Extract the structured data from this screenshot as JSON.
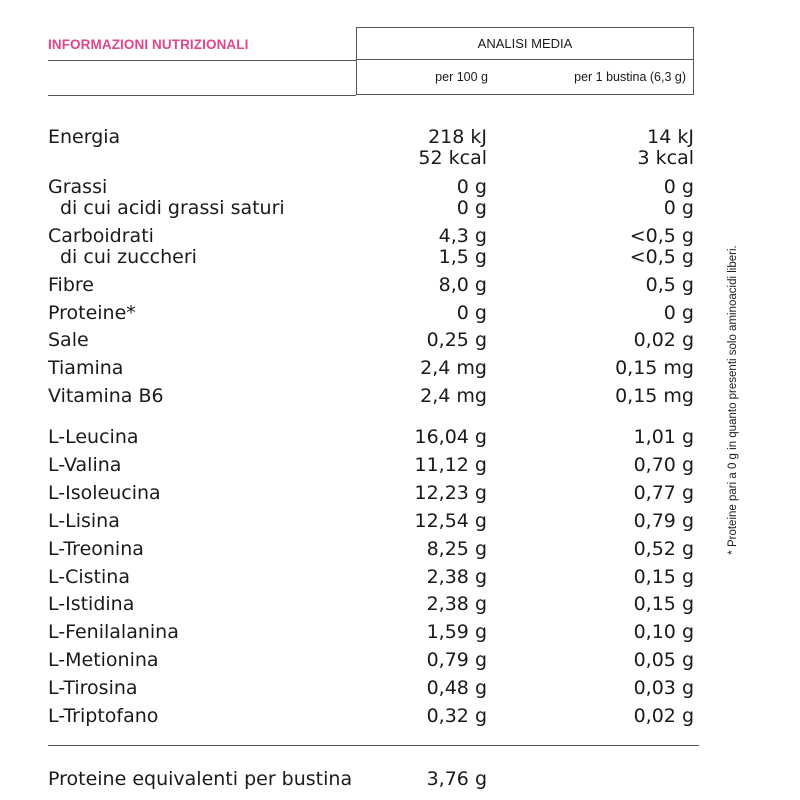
{
  "header": {
    "title": "INFORMAZIONI NUTRIZIONALI",
    "title_color": "#e0458a",
    "analysis_label": "ANALISI MEDIA",
    "col_per_100": "per 100 g",
    "col_per_sachet": "per 1 bustina (6,3 g)"
  },
  "rows": [
    {
      "label": "Energia",
      "v1": "218 kJ",
      "v2": "14 kJ"
    },
    {
      "label": "",
      "v1": "52 kcal",
      "v2": "3 kcal"
    },
    {
      "label": "Grassi",
      "v1": "0 g",
      "v2": "0 g"
    },
    {
      "label": "di cui acidi grassi saturi",
      "v1": "0 g",
      "v2": "0 g"
    },
    {
      "label": "Carboidrati",
      "v1": "4,3 g",
      "v2": "<0,5 g"
    },
    {
      "label": "di cui zuccheri",
      "v1": "1,5 g",
      "v2": "<0,5 g"
    },
    {
      "label": "Fibre",
      "v1": "8,0 g",
      "v2": "0,5 g"
    },
    {
      "label": "Proteine*",
      "v1": "0 g",
      "v2": "0 g"
    },
    {
      "label": "Sale",
      "v1": "0,25 g",
      "v2": "0,02 g"
    },
    {
      "label": "Tiamina",
      "v1": "2,4 mg",
      "v2": "0,15 mg"
    },
    {
      "label": "Vitamina B6",
      "v1": "2,4 mg",
      "v2": "0,15 mg"
    },
    {
      "label": "L-Leucina",
      "v1": "16,04 g",
      "v2": "1,01 g"
    },
    {
      "label": "L-Valina",
      "v1": "11,12 g",
      "v2": "0,70 g"
    },
    {
      "label": "L-Isoleucina",
      "v1": "12,23 g",
      "v2": "0,77 g"
    },
    {
      "label": "L-Lisina",
      "v1": "12,54 g",
      "v2": "0,79 g"
    },
    {
      "label": "L-Treonina",
      "v1": "8,25 g",
      "v2": "0,52 g"
    },
    {
      "label": "L-Cistina",
      "v1": "2,38 g",
      "v2": "0,15 g"
    },
    {
      "label": "L-Istidina",
      "v1": "2,38 g",
      "v2": "0,15 g"
    },
    {
      "label": "L-Fenilalanina",
      "v1": "1,59 g",
      "v2": "0,10 g"
    },
    {
      "label": "L-Metionina",
      "v1": "0,79 g",
      "v2": "0,05 g"
    },
    {
      "label": "L-Tirosina",
      "v1": "0,48 g",
      "v2": "0,03 g"
    },
    {
      "label": "L-Triptofano",
      "v1": "0,32 g",
      "v2": "0,02 g"
    }
  ],
  "footer": {
    "label": "Proteine equivalenti per bustina",
    "value": "3,76 g"
  },
  "footnote": "* Proteine pari a 0 g in quanto presenti solo aminoacidi liberi."
}
